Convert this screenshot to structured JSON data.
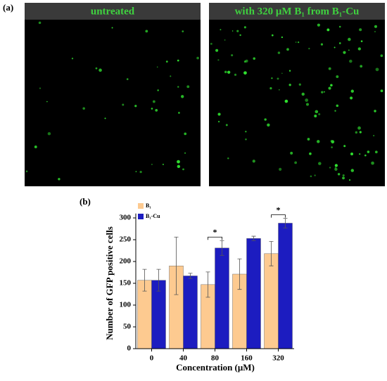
{
  "panels": {
    "a": {
      "label": "(a)",
      "images": [
        {
          "title": "untreated"
        },
        {
          "title": "with 320 μM B₁ from B₁-Cu"
        }
      ]
    },
    "b": {
      "label": "(b)"
    }
  },
  "chart_data": {
    "type": "bar",
    "ylabel": "Number of GFP positive cells",
    "xlabel": "Concentration (μM)",
    "categories": [
      "0",
      "40",
      "80",
      "160",
      "320"
    ],
    "series": [
      {
        "name": "B₁",
        "color": "#fdca90",
        "values": [
          157,
          190,
          147,
          171,
          218
        ],
        "errors": [
          25,
          66,
          29,
          35,
          28
        ]
      },
      {
        "name": "B₁-Cu",
        "color": "#1c1cc0",
        "values": [
          157,
          167,
          231,
          253,
          288
        ],
        "errors": [
          25,
          6,
          17,
          5,
          11
        ]
      }
    ],
    "ylim": [
      0,
      310
    ],
    "yticks": [
      0,
      50,
      100,
      150,
      200,
      250,
      300
    ],
    "annotations": [
      {
        "text": "*",
        "category": "80"
      },
      {
        "text": "*",
        "category": "320"
      }
    ]
  }
}
